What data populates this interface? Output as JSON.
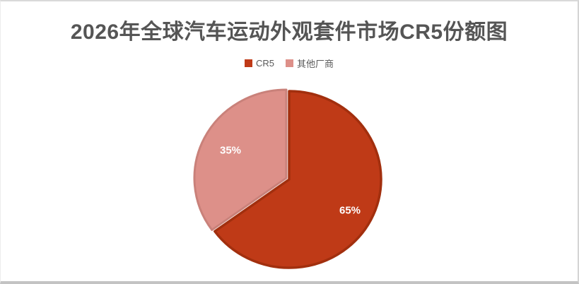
{
  "chart_data": {
    "type": "pie",
    "title": "2026年全球汽车运动外观套件市场CR5份额图",
    "categories": [
      "CR5",
      "其他厂商"
    ],
    "values": [
      65,
      35
    ],
    "labels": [
      "65%",
      "35%"
    ],
    "colors": [
      "#bf3a17",
      "#dd9089"
    ],
    "border_colors": [
      "#a22f0e",
      "#c9817a"
    ],
    "label_color": "#ffffff",
    "title_color": "#555555",
    "legend_text_color": "#595959",
    "legend_position": "top",
    "start_angle_deg": 0,
    "direction": "clockwise",
    "exploded_slices": [
      "其他厂商"
    ]
  }
}
